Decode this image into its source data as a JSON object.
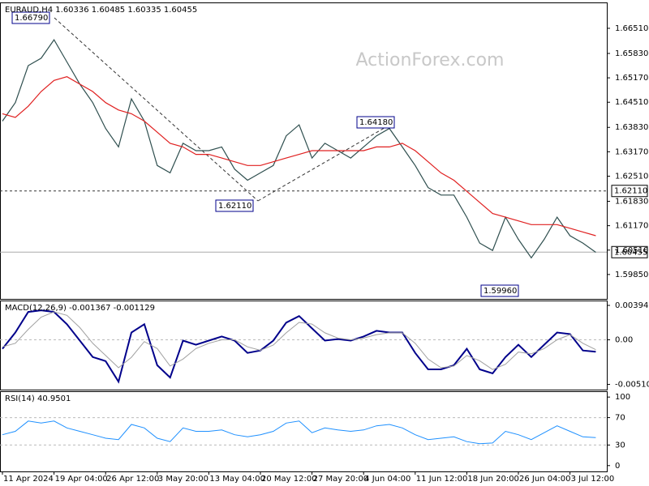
{
  "chart_data": [
    {
      "type": "line",
      "title": "EURAUD,H4  1.60336 1.60485 1.60335 1.60455",
      "watermark": "ActionForex.com",
      "ylim": [
        1.5919,
        1.6721
      ],
      "yticks": [
        {
          "value": 1.6651,
          "label": "1.66510"
        },
        {
          "value": 1.6583,
          "label": "1.65830"
        },
        {
          "value": 1.6517,
          "label": "1.65170"
        },
        {
          "value": 1.6451,
          "label": "1.64510"
        },
        {
          "value": 1.6383,
          "label": "1.63830"
        },
        {
          "value": 1.6317,
          "label": "1.63170"
        },
        {
          "value": 1.6251,
          "label": "1.62510"
        },
        {
          "value": 1.6183,
          "label": "1.61830"
        },
        {
          "value": 1.6117,
          "label": "1.61170"
        },
        {
          "value": 1.6051,
          "label": "1.60510"
        },
        {
          "value": 1.5985,
          "label": "1.59850"
        }
      ],
      "hlines": [
        {
          "value": 1.6211,
          "label": "1.62110",
          "style": "dashed"
        },
        {
          "value": 1.60455,
          "label": "1.60455",
          "style": "solid"
        }
      ],
      "annotations": [
        {
          "value": 1.6679,
          "label": "1.66790"
        },
        {
          "value": 1.6418,
          "label": "1.64180"
        },
        {
          "value": 1.6211,
          "label": "1.62110"
        },
        {
          "value": 1.5996,
          "label": "1.59960"
        }
      ],
      "series": [
        {
          "color": "#2f4f4f",
          "values": [
            1.64,
            1.645,
            1.655,
            1.657,
            1.662,
            1.656,
            1.65,
            1.645,
            1.638,
            1.633,
            1.646,
            1.64,
            1.628,
            1.626,
            1.634,
            1.632,
            1.632,
            1.633,
            1.627,
            1.624,
            1.626,
            1.628,
            1.636,
            1.639,
            1.63,
            1.634,
            1.632,
            1.63,
            1.633,
            1.636,
            1.638,
            1.633,
            1.628,
            1.622,
            1.62,
            1.62,
            1.614,
            1.607,
            1.605,
            1.614,
            1.608,
            1.603,
            1.608,
            1.614,
            1.609,
            1.607,
            1.6045
          ]
        },
        {
          "color": "#e02020",
          "values": [
            1.642,
            1.641,
            1.644,
            1.648,
            1.651,
            1.652,
            1.65,
            1.648,
            1.645,
            1.643,
            1.642,
            1.64,
            1.637,
            1.634,
            1.633,
            1.631,
            1.631,
            1.63,
            1.629,
            1.628,
            1.628,
            1.629,
            1.63,
            1.631,
            1.632,
            1.632,
            1.632,
            1.632,
            1.632,
            1.633,
            1.633,
            1.634,
            1.632,
            1.629,
            1.626,
            1.624,
            1.621,
            1.618,
            1.615,
            1.614,
            1.613,
            1.612,
            1.612,
            1.612,
            1.611,
            1.61,
            1.609
          ]
        }
      ]
    },
    {
      "type": "line",
      "title": "MACD(12,26,9) -0.001367 -0.001129",
      "ylim": [
        -0.0057,
        0.0045
      ],
      "yticks": [
        0.003941,
        {
          "value": 0,
          "label": "0.00"
        },
        -0.005103
      ],
      "hlines": [
        0
      ],
      "series": [
        {
          "color": "#00008b",
          "width": 2,
          "values": [
            -0.00103,
            0.00084,
            0.00319,
            0.00338,
            0.00319,
            0.00178,
            -9e-05,
            -0.00197,
            -0.00244,
            -0.00479,
            0.00084,
            0.00178,
            -0.00291,
            -0.00432,
            -9e-05,
            -0.00056,
            -9e-05,
            0.00038,
            -9e-05,
            -0.0015,
            -0.00122,
            -9e-05,
            0.00197,
            0.00272,
            0.00131,
            -9e-05,
            9e-05,
            -9e-05,
            0.00038,
            0.00103,
            0.00084,
            0.00084,
            -0.0015,
            -0.00338,
            -0.00338,
            -0.00291,
            -0.00103,
            -0.00338,
            -0.00385,
            -0.00197,
            -0.00056,
            -0.00197,
            -0.00056,
            0.00084,
            0.00066,
            -0.00122,
            -0.001367
          ]
        },
        {
          "color": "#a0a0a0",
          "width": 1,
          "values": [
            -0.0008,
            -0.0004,
            0.0012,
            0.0026,
            0.0032,
            0.0028,
            0.0014,
            -0.0004,
            -0.0018,
            -0.0032,
            -0.002,
            -0.0002,
            -0.001,
            -0.003,
            -0.0022,
            -0.001,
            -0.0004,
            0,
            0,
            -0.0008,
            -0.0012,
            -0.0006,
            0.0008,
            0.002,
            0.0018,
            0.0008,
            0.0002,
            0,
            0.0002,
            0.0006,
            0.0008,
            0.0008,
            -0.0004,
            -0.0022,
            -0.0032,
            -0.003,
            -0.0018,
            -0.0024,
            -0.0034,
            -0.0028,
            -0.0014,
            -0.0016,
            -0.001,
            0,
            0.0006,
            -0.0004,
            -0.001129
          ]
        }
      ]
    },
    {
      "type": "line",
      "title": "RSI(14) 40.9501",
      "ylim": [
        -8.5,
        108.5
      ],
      "yticks": [
        100,
        70,
        30,
        0
      ],
      "hlines": [
        70,
        30
      ],
      "categories": [
        "11 Apr 2024",
        null,
        null,
        null,
        "19 Apr 04:00",
        null,
        null,
        null,
        "26 Apr 12:00",
        null,
        null,
        null,
        "3 May 20:00",
        null,
        null,
        null,
        "13 May 04:00",
        null,
        null,
        null,
        "20 May 12:00",
        null,
        null,
        null,
        "27 May 20:00",
        null,
        null,
        null,
        "4 Jun 04:00",
        null,
        null,
        null,
        "11 Jun 12:00",
        null,
        null,
        null,
        "18 Jun 20:00",
        null,
        null,
        null,
        "26 Jun 04:00",
        null,
        null,
        null,
        "3 Jul 12:00",
        null,
        null
      ],
      "series": [
        {
          "color": "#1e90ff",
          "width": 1,
          "values": [
            45,
            50,
            65,
            62,
            65,
            55,
            50,
            45,
            40,
            38,
            60,
            55,
            40,
            35,
            55,
            50,
            50,
            52,
            45,
            42,
            45,
            50,
            62,
            65,
            48,
            55,
            52,
            50,
            52,
            58,
            60,
            55,
            45,
            38,
            40,
            42,
            35,
            32,
            33,
            50,
            45,
            38,
            48,
            58,
            50,
            42,
            40.9501
          ]
        }
      ]
    }
  ]
}
